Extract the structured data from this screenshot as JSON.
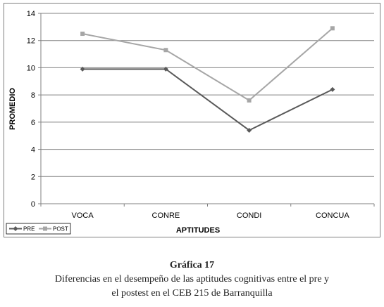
{
  "chart_data": {
    "type": "line",
    "categories": [
      "VOCA",
      "CONRE",
      "CONDI",
      "CONCUA"
    ],
    "series": [
      {
        "name": "PRE",
        "values": [
          9.9,
          9.9,
          5.4,
          8.4
        ],
        "color": "#595959",
        "marker": "diamond"
      },
      {
        "name": "POST",
        "values": [
          12.5,
          11.3,
          7.6,
          12.9
        ],
        "color": "#a6a6a6",
        "marker": "square"
      }
    ],
    "xlabel": "APTITUDES",
    "ylabel": "PROMEDIO",
    "ylim": [
      0,
      14
    ],
    "yticks": [
      0,
      2,
      4,
      6,
      8,
      10,
      12,
      14
    ],
    "grid": true,
    "legend_position": "bottom-left"
  },
  "caption": {
    "title": "Gráfica 17",
    "line1": "Diferencias en el desempeño de las aptitudes cognitivas entre el pre y",
    "line2": "el postest en el CEB 215 de Barranquilla"
  }
}
